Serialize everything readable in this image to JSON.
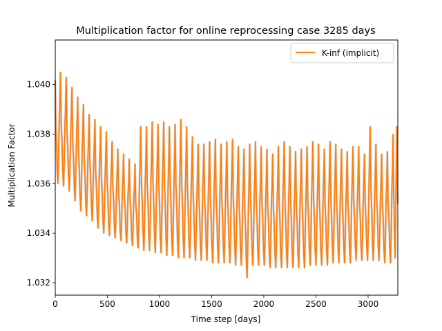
{
  "chart_data": {
    "type": "line",
    "title": "Multiplication factor for online reprocessing case 3285 days",
    "xlabel": "Time step [days]",
    "ylabel": "Multiplication Factor",
    "xlim": [
      0,
      3285
    ],
    "ylim": [
      1.0315,
      1.0418
    ],
    "xticks": [
      0,
      500,
      1000,
      1500,
      2000,
      2500,
      3000
    ],
    "xtick_labels": [
      "0",
      "500",
      "1000",
      "1500",
      "2000",
      "2500",
      "3000"
    ],
    "yticks": [
      1.032,
      1.034,
      1.036,
      1.038,
      1.04
    ],
    "ytick_labels": [
      "1.032",
      "1.034",
      "1.036",
      "1.038",
      "1.040"
    ],
    "grid": true,
    "legend": {
      "position": "top-right",
      "entries": [
        "K-inf (implicit)"
      ]
    },
    "series": [
      {
        "name": "K-inf (implicit)",
        "color": "#ff7f0e",
        "oscillation_period_days": 55,
        "cycle_peaks": [
          [
            0,
            1.0402
          ],
          [
            50,
            1.0405
          ],
          [
            105,
            1.0403
          ],
          [
            160,
            1.0399
          ],
          [
            215,
            1.0395
          ],
          [
            270,
            1.0392
          ],
          [
            325,
            1.0388
          ],
          [
            380,
            1.0386
          ],
          [
            435,
            1.0383
          ],
          [
            490,
            1.0381
          ],
          [
            545,
            1.0377
          ],
          [
            600,
            1.0374
          ],
          [
            655,
            1.0372
          ],
          [
            710,
            1.037
          ],
          [
            765,
            1.0368
          ],
          [
            820,
            1.0383
          ],
          [
            875,
            1.0383
          ],
          [
            930,
            1.0385
          ],
          [
            985,
            1.0384
          ],
          [
            1040,
            1.0385
          ],
          [
            1095,
            1.0383
          ],
          [
            1150,
            1.0384
          ],
          [
            1205,
            1.0386
          ],
          [
            1260,
            1.0383
          ],
          [
            1315,
            1.0379
          ],
          [
            1370,
            1.0376
          ],
          [
            1425,
            1.0376
          ],
          [
            1480,
            1.0377
          ],
          [
            1535,
            1.0378
          ],
          [
            1590,
            1.0376
          ],
          [
            1645,
            1.0377
          ],
          [
            1700,
            1.0378
          ],
          [
            1755,
            1.0375
          ],
          [
            1810,
            1.0374
          ],
          [
            1865,
            1.0376
          ],
          [
            1920,
            1.0377
          ],
          [
            1975,
            1.0375
          ],
          [
            2030,
            1.0374
          ],
          [
            2085,
            1.0372
          ],
          [
            2140,
            1.0375
          ],
          [
            2195,
            1.0377
          ],
          [
            2250,
            1.0375
          ],
          [
            2305,
            1.0373
          ],
          [
            2360,
            1.0374
          ],
          [
            2415,
            1.0375
          ],
          [
            2470,
            1.0377
          ],
          [
            2525,
            1.0376
          ],
          [
            2580,
            1.0374
          ],
          [
            2635,
            1.0377
          ],
          [
            2690,
            1.0376
          ],
          [
            2745,
            1.0374
          ],
          [
            2800,
            1.0373
          ],
          [
            2855,
            1.0375
          ],
          [
            2910,
            1.0375
          ],
          [
            2965,
            1.0372
          ],
          [
            3020,
            1.0383
          ],
          [
            3075,
            1.0376
          ],
          [
            3130,
            1.0372
          ],
          [
            3185,
            1.0373
          ],
          [
            3240,
            1.038
          ],
          [
            3275,
            1.0383
          ]
        ],
        "cycle_troughs": [
          [
            25,
            1.036
          ],
          [
            80,
            1.0359
          ],
          [
            135,
            1.0357
          ],
          [
            190,
            1.0353
          ],
          [
            245,
            1.0349
          ],
          [
            300,
            1.0347
          ],
          [
            355,
            1.0345
          ],
          [
            410,
            1.0342
          ],
          [
            465,
            1.034
          ],
          [
            520,
            1.0339
          ],
          [
            575,
            1.0338
          ],
          [
            630,
            1.0337
          ],
          [
            685,
            1.0336
          ],
          [
            740,
            1.0335
          ],
          [
            795,
            1.0334
          ],
          [
            850,
            1.0333
          ],
          [
            905,
            1.0333
          ],
          [
            960,
            1.0332
          ],
          [
            1015,
            1.0332
          ],
          [
            1070,
            1.0331
          ],
          [
            1125,
            1.0331
          ],
          [
            1180,
            1.033
          ],
          [
            1235,
            1.033
          ],
          [
            1290,
            1.033
          ],
          [
            1345,
            1.0329
          ],
          [
            1400,
            1.0329
          ],
          [
            1455,
            1.0329
          ],
          [
            1510,
            1.0328
          ],
          [
            1565,
            1.0328
          ],
          [
            1620,
            1.0328
          ],
          [
            1675,
            1.0328
          ],
          [
            1730,
            1.0327
          ],
          [
            1785,
            1.0327
          ],
          [
            1840,
            1.0322
          ],
          [
            1895,
            1.0327
          ],
          [
            1950,
            1.0327
          ],
          [
            2005,
            1.0327
          ],
          [
            2060,
            1.0326
          ],
          [
            2115,
            1.0326
          ],
          [
            2170,
            1.0326
          ],
          [
            2225,
            1.0326
          ],
          [
            2280,
            1.0326
          ],
          [
            2335,
            1.0326
          ],
          [
            2390,
            1.0326
          ],
          [
            2445,
            1.0327
          ],
          [
            2500,
            1.0327
          ],
          [
            2555,
            1.0327
          ],
          [
            2610,
            1.0327
          ],
          [
            2665,
            1.0328
          ],
          [
            2720,
            1.0328
          ],
          [
            2775,
            1.0328
          ],
          [
            2830,
            1.0328
          ],
          [
            2885,
            1.0329
          ],
          [
            2940,
            1.0329
          ],
          [
            2995,
            1.0329
          ],
          [
            3050,
            1.0329
          ],
          [
            3105,
            1.0329
          ],
          [
            3160,
            1.0328
          ],
          [
            3215,
            1.0328
          ],
          [
            3260,
            1.033
          ]
        ],
        "end_value": [
          3285,
          1.0352
        ]
      }
    ]
  }
}
